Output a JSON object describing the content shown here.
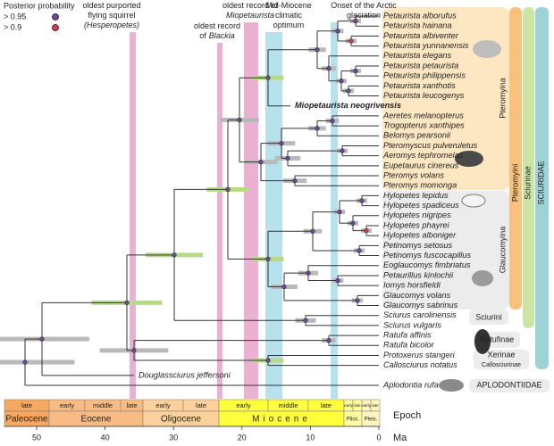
{
  "legend": {
    "title": "Posterior probability",
    "items": [
      "> 0.95",
      "> 0.9"
    ]
  },
  "annotations": [
    {
      "lines": [
        [
          {
            "text": "oldest purported",
            "italic": false
          }
        ],
        [
          {
            "text": "flying squirrel",
            "italic": false
          }
        ],
        [
          {
            "text": "(Hesperopetes)",
            "italic": true
          }
        ]
      ]
    },
    {
      "lines": [
        [
          {
            "text": "oldest record",
            "italic": false
          }
        ],
        [
          {
            "text": "of",
            "italic": false
          },
          {
            "text": "Blackia",
            "italic": true
          }
        ]
      ]
    },
    {
      "lines": [
        [
          {
            "text": "oldest record of",
            "italic": false
          }
        ],
        [
          {
            "text": "Miopetaurista",
            "italic": true
          }
        ]
      ]
    },
    {
      "lines": [
        [
          {
            "text": "Mid-Miocene",
            "italic": false
          }
        ],
        [
          {
            "text": "climatic",
            "italic": false
          }
        ],
        [
          {
            "text": "optimum",
            "italic": false
          }
        ]
      ]
    },
    {
      "lines": [
        [
          {
            "text": "Onset of the Arctic",
            "italic": false
          }
        ],
        [
          {
            "text": "glaciation",
            "italic": false
          }
        ]
      ]
    }
  ],
  "taxa": [
    {
      "name": "Petaurista alborufus"
    },
    {
      "name": "Petaurista hainana"
    },
    {
      "name": "Petaurista albiventer"
    },
    {
      "name": "Petaurista yunnanensis"
    },
    {
      "name": "Petaurista elegans"
    },
    {
      "name": "Petaurista petaurista"
    },
    {
      "name": "Petaurista philippensis"
    },
    {
      "name": "Petaurista xanthotis"
    },
    {
      "name": "Petaurista leucogenys"
    },
    {
      "name": "Miopetaurista neogrivensis",
      "bold": true
    },
    {
      "name": "Aeretes melanopterus"
    },
    {
      "name": "Trogopterus xanthipes"
    },
    {
      "name": "Belomys pearsonii"
    },
    {
      "name": "Pteromyscus pulveruletus"
    },
    {
      "name": "Aeromys tephromelas"
    },
    {
      "name": "Eupetaurus cinereus"
    },
    {
      "name": "Pteromys volans"
    },
    {
      "name": "Pteromys momonga"
    },
    {
      "name": "Hylopetes lepidus"
    },
    {
      "name": "Hylopetes spadiceus"
    },
    {
      "name": "Hylopetes nigripes"
    },
    {
      "name": "Hylopetes phayrei"
    },
    {
      "name": "Hylopetes alboniger"
    },
    {
      "name": "Petinomys setosus"
    },
    {
      "name": "Petinomys fuscocapillus"
    },
    {
      "name": "Eoglaucomys fimbriatus"
    },
    {
      "name": "Petaurillus kinlochii"
    },
    {
      "name": "Iomys horsfieldi"
    },
    {
      "name": "Glaucomys volans"
    },
    {
      "name": "Glaucomys sabrinus"
    },
    {
      "name": "Sciurus carolinensis"
    },
    {
      "name": "Sciurus vulgaris"
    },
    {
      "name": "Ratufa affinis"
    },
    {
      "name": "Ratufa bicolor"
    },
    {
      "name": "Protoxerus stangeri"
    },
    {
      "name": "Callosciurus notatus"
    },
    {
      "name": "Douglassciurus jeffersoni"
    },
    {
      "name": "Aplodontia rufa"
    }
  ],
  "clades": [
    "Pteromyina",
    "Glaucomyina",
    "Pteromyini",
    "Sciurinae",
    "SCIURIDAE",
    "Sciurini",
    "Ratufinae",
    "Xerinae",
    "Callosciurinae",
    "APLODONTIIDAE"
  ],
  "timescale": {
    "ages": [
      "late",
      "early",
      "middle",
      "late",
      "early",
      "late",
      "early",
      "middle",
      "late",
      "early",
      "late",
      "early",
      "late"
    ],
    "epochs": [
      "Paleocene",
      "Eocene",
      "Oligocene",
      "Miocene",
      "Plioc.",
      "Pleis."
    ],
    "row_labels": [
      "Epoch",
      "Ma"
    ],
    "ticks": [
      50,
      40,
      30,
      20,
      10,
      0
    ]
  }
}
